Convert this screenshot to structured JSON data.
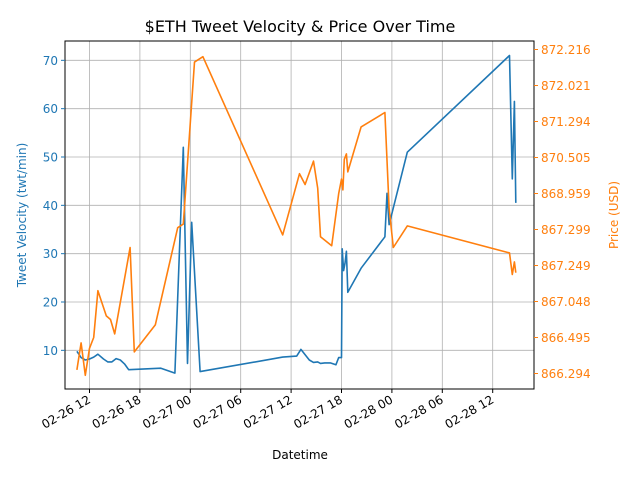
{
  "chart_data": {
    "type": "line",
    "title": "$ETH Tweet Velocity & Price Over Time",
    "xlabel": "Datetime",
    "ylabel_left": "Tweet Velocity (twt/min)",
    "ylabel_right": "Price (USD)",
    "grid": true,
    "colors": {
      "velocity": "#1f77b4",
      "price": "#ff7f0e"
    },
    "x_tick_labels": [
      "02-26 12",
      "02-26 18",
      "02-27 00",
      "02-27 06",
      "02-27 12",
      "02-27 18",
      "02-28 00",
      "02-28 06",
      "02-28 12"
    ],
    "x_range": [
      "2021-02-26 09:05",
      "2021-02-28 16:55"
    ],
    "left_axis": {
      "ylim": [
        2.0,
        74.0
      ],
      "ticks": [
        10,
        20,
        30,
        40,
        50,
        60,
        70
      ],
      "tick_labels": [
        "10",
        "20",
        "30",
        "40",
        "50",
        "60",
        "70"
      ]
    },
    "right_axis": {
      "note": "categorical price labels at even spacing",
      "ticks": [
        "866.294",
        "866.495",
        "867.048",
        "867.249",
        "867.299",
        "868.959",
        "870.505",
        "871.294",
        "872.021",
        "872.216"
      ]
    },
    "series": [
      {
        "axis": "left",
        "values": [
          [
            "2021-02-26 10:30",
            9.8
          ],
          [
            "2021-02-26 11:00",
            8.5
          ],
          [
            "2021-02-26 11:30",
            8.0
          ],
          [
            "2021-02-26 12:00",
            8.2
          ],
          [
            "2021-02-26 12:30",
            8.6
          ],
          [
            "2021-02-26 13:00",
            9.2
          ],
          [
            "2021-02-26 13:40",
            8.2
          ],
          [
            "2021-02-26 14:10",
            7.6
          ],
          [
            "2021-02-26 14:40",
            7.6
          ],
          [
            "2021-02-26 15:10",
            8.3
          ],
          [
            "2021-02-26 15:40",
            8.0
          ],
          [
            "2021-02-26 16:10",
            7.2
          ],
          [
            "2021-02-26 16:40",
            6.0
          ],
          [
            "2021-02-26 20:30",
            6.3
          ],
          [
            "2021-02-26 22:10",
            5.3
          ],
          [
            "2021-02-26 23:10",
            52.0
          ],
          [
            "2021-02-26 23:40",
            7.3
          ],
          [
            "2021-02-27 00:10",
            36.5
          ],
          [
            "2021-02-27 01:10",
            5.6
          ],
          [
            "2021-02-27 11:00",
            8.6
          ],
          [
            "2021-02-27 12:40",
            8.8
          ],
          [
            "2021-02-27 13:10",
            10.2
          ],
          [
            "2021-02-27 14:10",
            8.0
          ],
          [
            "2021-02-27 14:40",
            7.5
          ],
          [
            "2021-02-27 15:10",
            7.6
          ],
          [
            "2021-02-27 15:30",
            7.3
          ],
          [
            "2021-02-27 16:00",
            7.4
          ],
          [
            "2021-02-27 16:40",
            7.4
          ],
          [
            "2021-02-27 17:20",
            7.0
          ],
          [
            "2021-02-27 17:40",
            8.5
          ],
          [
            "2021-02-27 18:00",
            8.5
          ],
          [
            "2021-02-27 18:05",
            31.0
          ],
          [
            "2021-02-27 18:15",
            26.5
          ],
          [
            "2021-02-27 18:25",
            28.0
          ],
          [
            "2021-02-27 18:35",
            30.5
          ],
          [
            "2021-02-27 18:45",
            22.0
          ],
          [
            "2021-02-27 20:20",
            27.0
          ],
          [
            "2021-02-27 23:10",
            33.5
          ],
          [
            "2021-02-27 23:25",
            42.5
          ],
          [
            "2021-02-27 23:40",
            36.0
          ],
          [
            "2021-02-28 01:50",
            51.0
          ],
          [
            "2021-02-28 14:00",
            71.0
          ],
          [
            "2021-02-28 14:20",
            45.5
          ],
          [
            "2021-02-28 14:35",
            61.5
          ],
          [
            "2021-02-28 14:45",
            40.5
          ]
        ]
      },
      {
        "axis": "right",
        "values": [
          [
            "2021-02-26 10:30",
            0.1
          ],
          [
            "2021-02-26 11:00",
            0.85
          ],
          [
            "2021-02-26 11:30",
            -0.05
          ],
          [
            "2021-02-26 12:00",
            0.7
          ],
          [
            "2021-02-26 12:30",
            1.0
          ],
          [
            "2021-02-26 13:00",
            2.3
          ],
          [
            "2021-02-26 14:00",
            1.6
          ],
          [
            "2021-02-26 14:30",
            1.5
          ],
          [
            "2021-02-26 15:00",
            1.1
          ],
          [
            "2021-02-26 16:50",
            3.5
          ],
          [
            "2021-02-26 17:20",
            0.6
          ],
          [
            "2021-02-26 19:50",
            1.35
          ],
          [
            "2021-02-26 22:30",
            4.05
          ],
          [
            "2021-02-26 23:10",
            4.15
          ],
          [
            "2021-02-27 00:30",
            8.65
          ],
          [
            "2021-02-27 01:30",
            8.8
          ],
          [
            "2021-02-27 11:00",
            3.85
          ],
          [
            "2021-02-27 13:00",
            5.55
          ],
          [
            "2021-02-27 13:40",
            5.25
          ],
          [
            "2021-02-27 14:40",
            5.9
          ],
          [
            "2021-02-27 15:10",
            5.15
          ],
          [
            "2021-02-27 15:30",
            3.8
          ],
          [
            "2021-02-27 16:50",
            3.55
          ],
          [
            "2021-02-27 17:40",
            5.0
          ],
          [
            "2021-02-27 18:00",
            5.4
          ],
          [
            "2021-02-27 18:10",
            5.1
          ],
          [
            "2021-02-27 18:20",
            5.95
          ],
          [
            "2021-02-27 18:35",
            6.1
          ],
          [
            "2021-02-27 18:45",
            5.6
          ],
          [
            "2021-02-27 20:20",
            6.85
          ],
          [
            "2021-02-27 23:10",
            7.25
          ],
          [
            "2021-02-27 23:40",
            4.6
          ],
          [
            "2021-02-28 00:10",
            3.5
          ],
          [
            "2021-02-28 01:50",
            4.1
          ],
          [
            "2021-02-28 14:00",
            3.35
          ],
          [
            "2021-02-28 14:20",
            2.75
          ],
          [
            "2021-02-28 14:35",
            3.1
          ],
          [
            "2021-02-28 14:45",
            2.8
          ]
        ]
      }
    ]
  }
}
